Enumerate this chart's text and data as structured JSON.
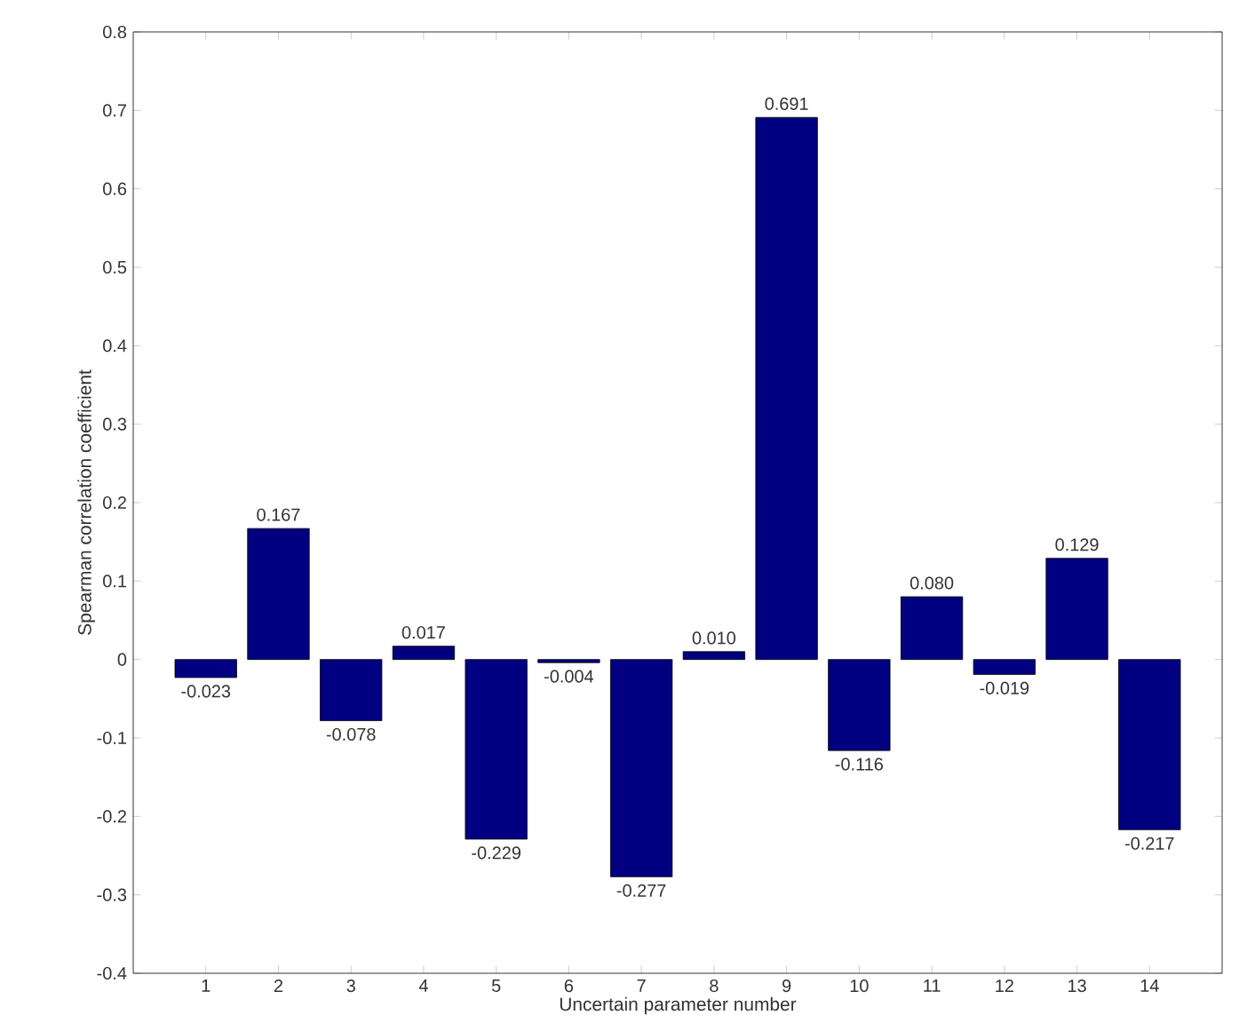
{
  "chart_data": {
    "type": "bar",
    "xlabel": "Uncertain parameter number",
    "ylabel": "Spearman correlation coefficient",
    "categories": [
      "1",
      "2",
      "3",
      "4",
      "5",
      "6",
      "7",
      "8",
      "9",
      "10",
      "11",
      "12",
      "13",
      "14"
    ],
    "values": [
      -0.023,
      0.167,
      -0.078,
      0.017,
      -0.229,
      -0.004,
      -0.277,
      0.01,
      0.691,
      -0.116,
      0.08,
      -0.019,
      0.129,
      -0.217
    ],
    "value_labels": [
      "-0.023",
      "0.167",
      "-0.078",
      "0.017",
      "-0.229",
      "-0.004",
      "-0.277",
      "0.010",
      "0.691",
      "-0.116",
      "0.080",
      "-0.019",
      "0.129",
      "-0.217"
    ],
    "color": "#000080",
    "ylim": [
      -0.4,
      0.8
    ],
    "yticks": [
      -0.4,
      -0.3,
      -0.2,
      -0.1,
      0,
      0.1,
      0.2,
      0.3,
      0.4,
      0.5,
      0.6,
      0.7,
      0.8
    ],
    "grid": false
  }
}
